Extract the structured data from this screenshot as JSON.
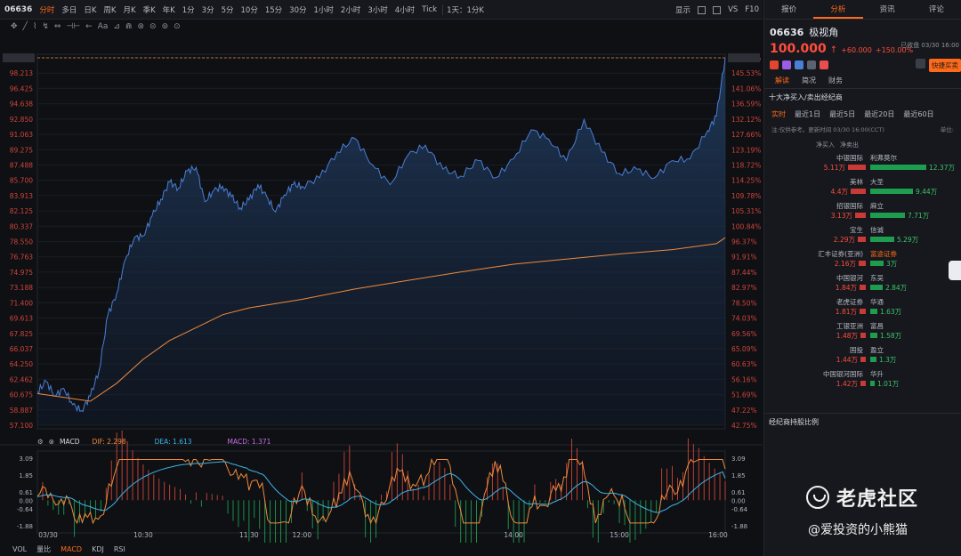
{
  "toolbar": {
    "code": "06636",
    "timeframes": [
      "分时",
      "多日",
      "日K",
      "周K",
      "月K",
      "季K",
      "年K",
      "1分",
      "3分",
      "5分",
      "10分",
      "15分",
      "30分",
      "1小时",
      "2小时",
      "3小时",
      "4小时",
      "Tick"
    ],
    "active_timeframe": "分时",
    "period_select": "1天：1分K",
    "display_label": "显示",
    "vs_label": "VS",
    "f10_label": "F10"
  },
  "drawtools": [
    "✥",
    "╱",
    "⌇",
    "↯",
    "⇔",
    "⊣⊢",
    "←",
    "Aa",
    "⊿",
    "⋒",
    "⊛",
    "⊝",
    "⊚",
    "⊙"
  ],
  "chart_data": [
    {
      "type": "line",
      "name": "intraday",
      "ylim": [
        57.1,
        100.0
      ],
      "yticks": [
        "100.000",
        "98.213",
        "96.425",
        "94.638",
        "92.850",
        "91.063",
        "89.275",
        "87.488",
        "85.700",
        "83.913",
        "82.125",
        "80.337",
        "78.550",
        "76.763",
        "74.975",
        "73.188",
        "71.400",
        "69.613",
        "67.825",
        "66.037",
        "64.250",
        "62.462",
        "60.675",
        "58.887",
        "57.100"
      ],
      "pct_ticks": [
        "150.00%",
        "145.53%",
        "141.06%",
        "136.59%",
        "132.12%",
        "127.66%",
        "123.19%",
        "118.72%",
        "114.25%",
        "109.78%",
        "105.31%",
        "100.84%",
        "96.37%",
        "91.91%",
        "87.44%",
        "82.97%",
        "78.50%",
        "74.03%",
        "69.56%",
        "65.09%",
        "60.63%",
        "56.16%",
        "51.69%",
        "47.22%",
        "42.75%"
      ],
      "xticks": [
        "03/30",
        "10:30",
        "11:30",
        "12:00",
        "14:00",
        "15:00",
        "16:00"
      ],
      "series": [
        {
          "name": "price",
          "color": "#4a7fd6",
          "x": [
            "09:30",
            "09:35",
            "09:40",
            "09:45",
            "09:50",
            "09:55",
            "10:00",
            "10:05",
            "10:10",
            "10:15",
            "10:20",
            "10:25",
            "10:30",
            "10:35",
            "10:40",
            "10:45",
            "10:50",
            "10:55",
            "11:00",
            "11:05",
            "11:10",
            "11:15",
            "11:20",
            "11:25",
            "11:30",
            "11:35",
            "11:40",
            "11:45",
            "11:50",
            "11:55",
            "12:00",
            "12:10",
            "12:20",
            "12:30",
            "12:40",
            "12:50",
            "13:00",
            "13:10",
            "13:20",
            "13:30",
            "13:40",
            "13:50",
            "14:00",
            "14:10",
            "14:20",
            "14:30",
            "14:40",
            "14:50",
            "15:00",
            "15:10",
            "15:20",
            "15:30",
            "15:40",
            "15:50",
            "15:55",
            "16:00"
          ],
          "values": [
            61.0,
            62.2,
            60.5,
            61.4,
            59.5,
            58.8,
            60.5,
            63.5,
            70.0,
            72.5,
            76.5,
            79.0,
            79.2,
            81.5,
            83.5,
            85.5,
            84.8,
            86.8,
            87.2,
            83.2,
            84.5,
            85.0,
            83.8,
            82.5,
            83.4,
            85.2,
            83.8,
            82.0,
            84.0,
            85.2,
            85.0,
            86.0,
            89.0,
            90.6,
            87.5,
            85.2,
            88.6,
            89.8,
            87.0,
            86.2,
            88.0,
            86.0,
            88.2,
            91.6,
            90.5,
            88.0,
            92.8,
            89.0,
            86.5,
            87.0,
            86.0,
            88.0,
            88.2,
            91.5,
            93.2,
            100.0
          ]
        },
        {
          "name": "avg",
          "color": "#f08a3c",
          "x": [
            "09:30",
            "10:00",
            "10:15",
            "10:30",
            "10:45",
            "11:00",
            "11:15",
            "11:30",
            "12:00",
            "12:30",
            "13:00",
            "13:30",
            "14:00",
            "14:30",
            "15:00",
            "15:30",
            "15:55",
            "16:00"
          ],
          "values": [
            60.8,
            59.9,
            62.0,
            64.8,
            67.0,
            68.5,
            70.0,
            70.8,
            71.8,
            73.0,
            74.0,
            75.0,
            75.9,
            76.5,
            77.1,
            77.6,
            78.3,
            79.0
          ]
        }
      ]
    },
    {
      "type": "bar",
      "name": "MACD",
      "ylim": [
        -1.88,
        3.09
      ],
      "yticks": [
        "3.09",
        "1.85",
        "0.61",
        "0.00",
        "-0.64",
        "-1.88"
      ],
      "series": [
        {
          "name": "DIF",
          "color": "#f08a3c"
        },
        {
          "name": "DEA",
          "color": "#3db4e6"
        },
        {
          "name": "MACD",
          "color": "#c76fe0"
        }
      ]
    }
  ],
  "macd_legend": {
    "title": "MACD",
    "dif": "DIF: 2.298",
    "dea": "DEA: 1.613",
    "macd": "MACD: 1.371"
  },
  "bottom_tabs": [
    "VOL",
    "量比",
    "MACD",
    "KDJ",
    "RSI"
  ],
  "active_bottom_tab": "MACD",
  "panel": {
    "tabs": [
      "报价",
      "分析",
      "资讯",
      "评论"
    ],
    "active_tab": "分析",
    "code": "06636",
    "name": "极视角",
    "price": "100.000",
    "change": "+60.000",
    "change_pct": "+150.00%",
    "status": "已收盘 03/30 16:00",
    "quick_trade": "快捷买卖",
    "subtabs": [
      "解读",
      "简况",
      "财务"
    ],
    "active_subtab": "解读",
    "section_title": "十大净买入/卖出经纪商",
    "ranges": [
      "实时",
      "最近1日",
      "最近5日",
      "最近20日",
      "最近60日"
    ],
    "active_range": "实时",
    "note": "注:仅供参考。更新时间 03/30 16:00(CCT)",
    "unit_label": "单位:",
    "col_buy": "净买入",
    "col_sell": "净卖出",
    "brokers": [
      {
        "buyer": "中银国际",
        "buy": "5.11万",
        "buy_frac": 1.0,
        "seller": "利弗莫尔",
        "sell": "12.37万",
        "sell_frac": 1.0,
        "seller_hl": false
      },
      {
        "buyer": "美林",
        "buy": "4.4万",
        "buy_frac": 0.86,
        "seller": "大圣",
        "sell": "9.44万",
        "sell_frac": 0.76,
        "seller_hl": false
      },
      {
        "buyer": "招银国际",
        "buy": "3.13万",
        "buy_frac": 0.61,
        "seller": "麻立",
        "sell": "7.71万",
        "sell_frac": 0.62,
        "seller_hl": false
      },
      {
        "buyer": "宝生",
        "buy": "2.29万",
        "buy_frac": 0.45,
        "seller": "信诚",
        "sell": "5.29万",
        "sell_frac": 0.43,
        "seller_hl": false
      },
      {
        "buyer": "汇丰证券(亚洲)",
        "buy": "2.16万",
        "buy_frac": 0.42,
        "seller": "富途证券",
        "sell": "3万",
        "sell_frac": 0.24,
        "seller_hl": true
      },
      {
        "buyer": "中国银河",
        "buy": "1.84万",
        "buy_frac": 0.36,
        "seller": "东吴",
        "sell": "2.84万",
        "sell_frac": 0.23,
        "seller_hl": false
      },
      {
        "buyer": "老虎证券",
        "buy": "1.81万",
        "buy_frac": 0.35,
        "seller": "华通",
        "sell": "1.63万",
        "sell_frac": 0.13,
        "seller_hl": false
      },
      {
        "buyer": "工银亚洲",
        "buy": "1.48万",
        "buy_frac": 0.29,
        "seller": "富昌",
        "sell": "1.58万",
        "sell_frac": 0.13,
        "seller_hl": false
      },
      {
        "buyer": "国投",
        "buy": "1.44万",
        "buy_frac": 0.28,
        "seller": "盈立",
        "sell": "1.3万",
        "sell_frac": 0.11,
        "seller_hl": false
      },
      {
        "buyer": "中国银河国际",
        "buy": "1.42万",
        "buy_frac": 0.28,
        "seller": "华升",
        "sell": "1.01万",
        "sell_frac": 0.08,
        "seller_hl": false
      }
    ],
    "section2_title": "经纪商持股比例"
  },
  "watermark": {
    "brand": "老虎社区",
    "author": "@爱投资的小熊猫"
  },
  "colors": {
    "accent": "#ff6a1a",
    "up": "#ff4d3d",
    "down": "#1e9d4e",
    "price_line": "#4a7fd6",
    "avg_line": "#f08a3c"
  }
}
